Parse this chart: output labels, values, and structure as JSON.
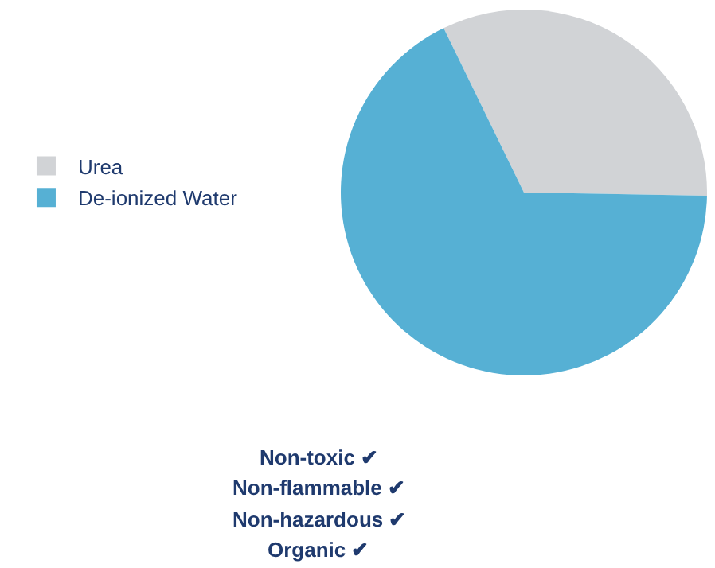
{
  "chart_data": {
    "type": "pie",
    "categories": [
      "Urea",
      "De-ionized Water"
    ],
    "values": [
      32.5,
      67.5
    ],
    "colors": [
      "#d1d3d6",
      "#56b0d4"
    ],
    "legend": "left",
    "annotations": [
      "Non-toxic ✔",
      "Non-flammable ✔",
      "Non-hazardous ✔",
      "Organic ✔"
    ]
  }
}
